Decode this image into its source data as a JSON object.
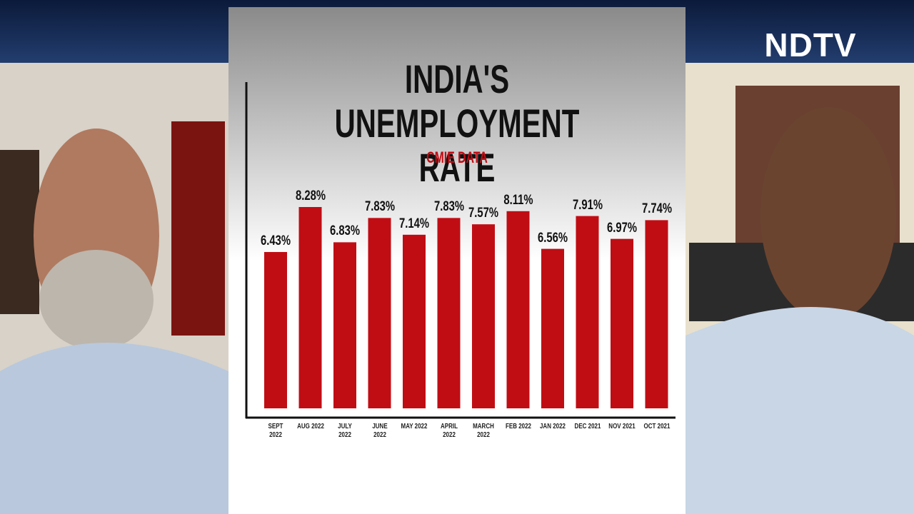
{
  "broadcaster": "NDTV",
  "chart_data": {
    "type": "bar",
    "title": "INDIA'S UNEMPLOYMENT RATE",
    "subtitle": "CMIE DATA",
    "categories": [
      "SEPT 2022",
      "AUG 2022",
      "JULY 2022",
      "JUNE 2022",
      "MAY 2022",
      "APRIL 2022",
      "MARCH 2022",
      "FEB 2022",
      "JAN 2022",
      "DEC 2021",
      "NOV 2021",
      "OCT 2021"
    ],
    "values": [
      6.43,
      8.28,
      6.83,
      7.83,
      7.14,
      7.83,
      7.57,
      8.11,
      6.56,
      7.91,
      6.97,
      7.74
    ],
    "value_labels": [
      "6.43%",
      "8.28%",
      "6.83%",
      "7.83%",
      "7.14%",
      "7.83%",
      "7.57%",
      "8.11%",
      "6.56%",
      "7.91%",
      "6.97%",
      "7.74%"
    ],
    "color": "#c00d14"
  }
}
